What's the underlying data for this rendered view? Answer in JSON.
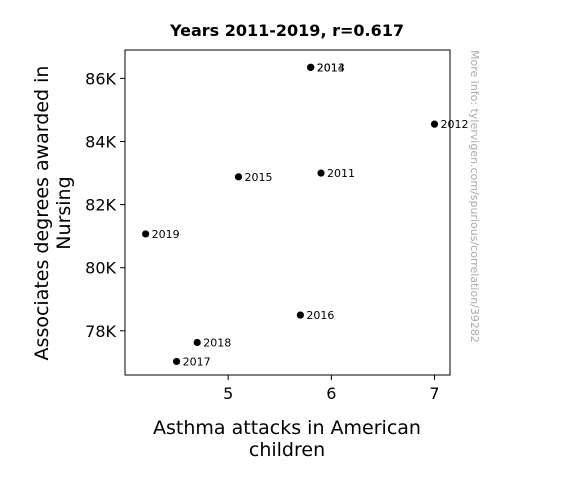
{
  "chart_data": {
    "type": "scatter",
    "title": "Years 2011-2019, r=0.617",
    "xlabel": [
      "Asthma attacks in American",
      "children"
    ],
    "ylabel": [
      "Associates degrees awarded in",
      "Nursing"
    ],
    "xlim": [
      4.0,
      7.15
    ],
    "ylim": [
      76600,
      86900
    ],
    "xticks": [
      {
        "value": 5,
        "label": "5"
      },
      {
        "value": 6,
        "label": "6"
      },
      {
        "value": 7,
        "label": "7"
      }
    ],
    "yticks": [
      {
        "value": 78000,
        "label": "78K"
      },
      {
        "value": 80000,
        "label": "80K"
      },
      {
        "value": 82000,
        "label": "82K"
      },
      {
        "value": 84000,
        "label": "84K"
      },
      {
        "value": 86000,
        "label": "86K"
      }
    ],
    "points": [
      {
        "x": 5.9,
        "y": 83000,
        "label": "2011"
      },
      {
        "x": 7.0,
        "y": 84550,
        "label": "2012"
      },
      {
        "x": 5.8,
        "y": 86350,
        "label": "2013"
      },
      {
        "x": 5.8,
        "y": 86350,
        "label": "2014"
      },
      {
        "x": 5.1,
        "y": 82880,
        "label": "2015"
      },
      {
        "x": 5.7,
        "y": 78500,
        "label": "2016"
      },
      {
        "x": 4.5,
        "y": 77030,
        "label": "2017"
      },
      {
        "x": 4.7,
        "y": 77630,
        "label": "2018"
      },
      {
        "x": 4.2,
        "y": 81070,
        "label": "2019"
      }
    ],
    "grid": false,
    "colors": {
      "points": "#000000",
      "watermark": "#aaaaaa"
    }
  },
  "watermark": "More info: tylervigen.com/spurious/correlation/39282"
}
